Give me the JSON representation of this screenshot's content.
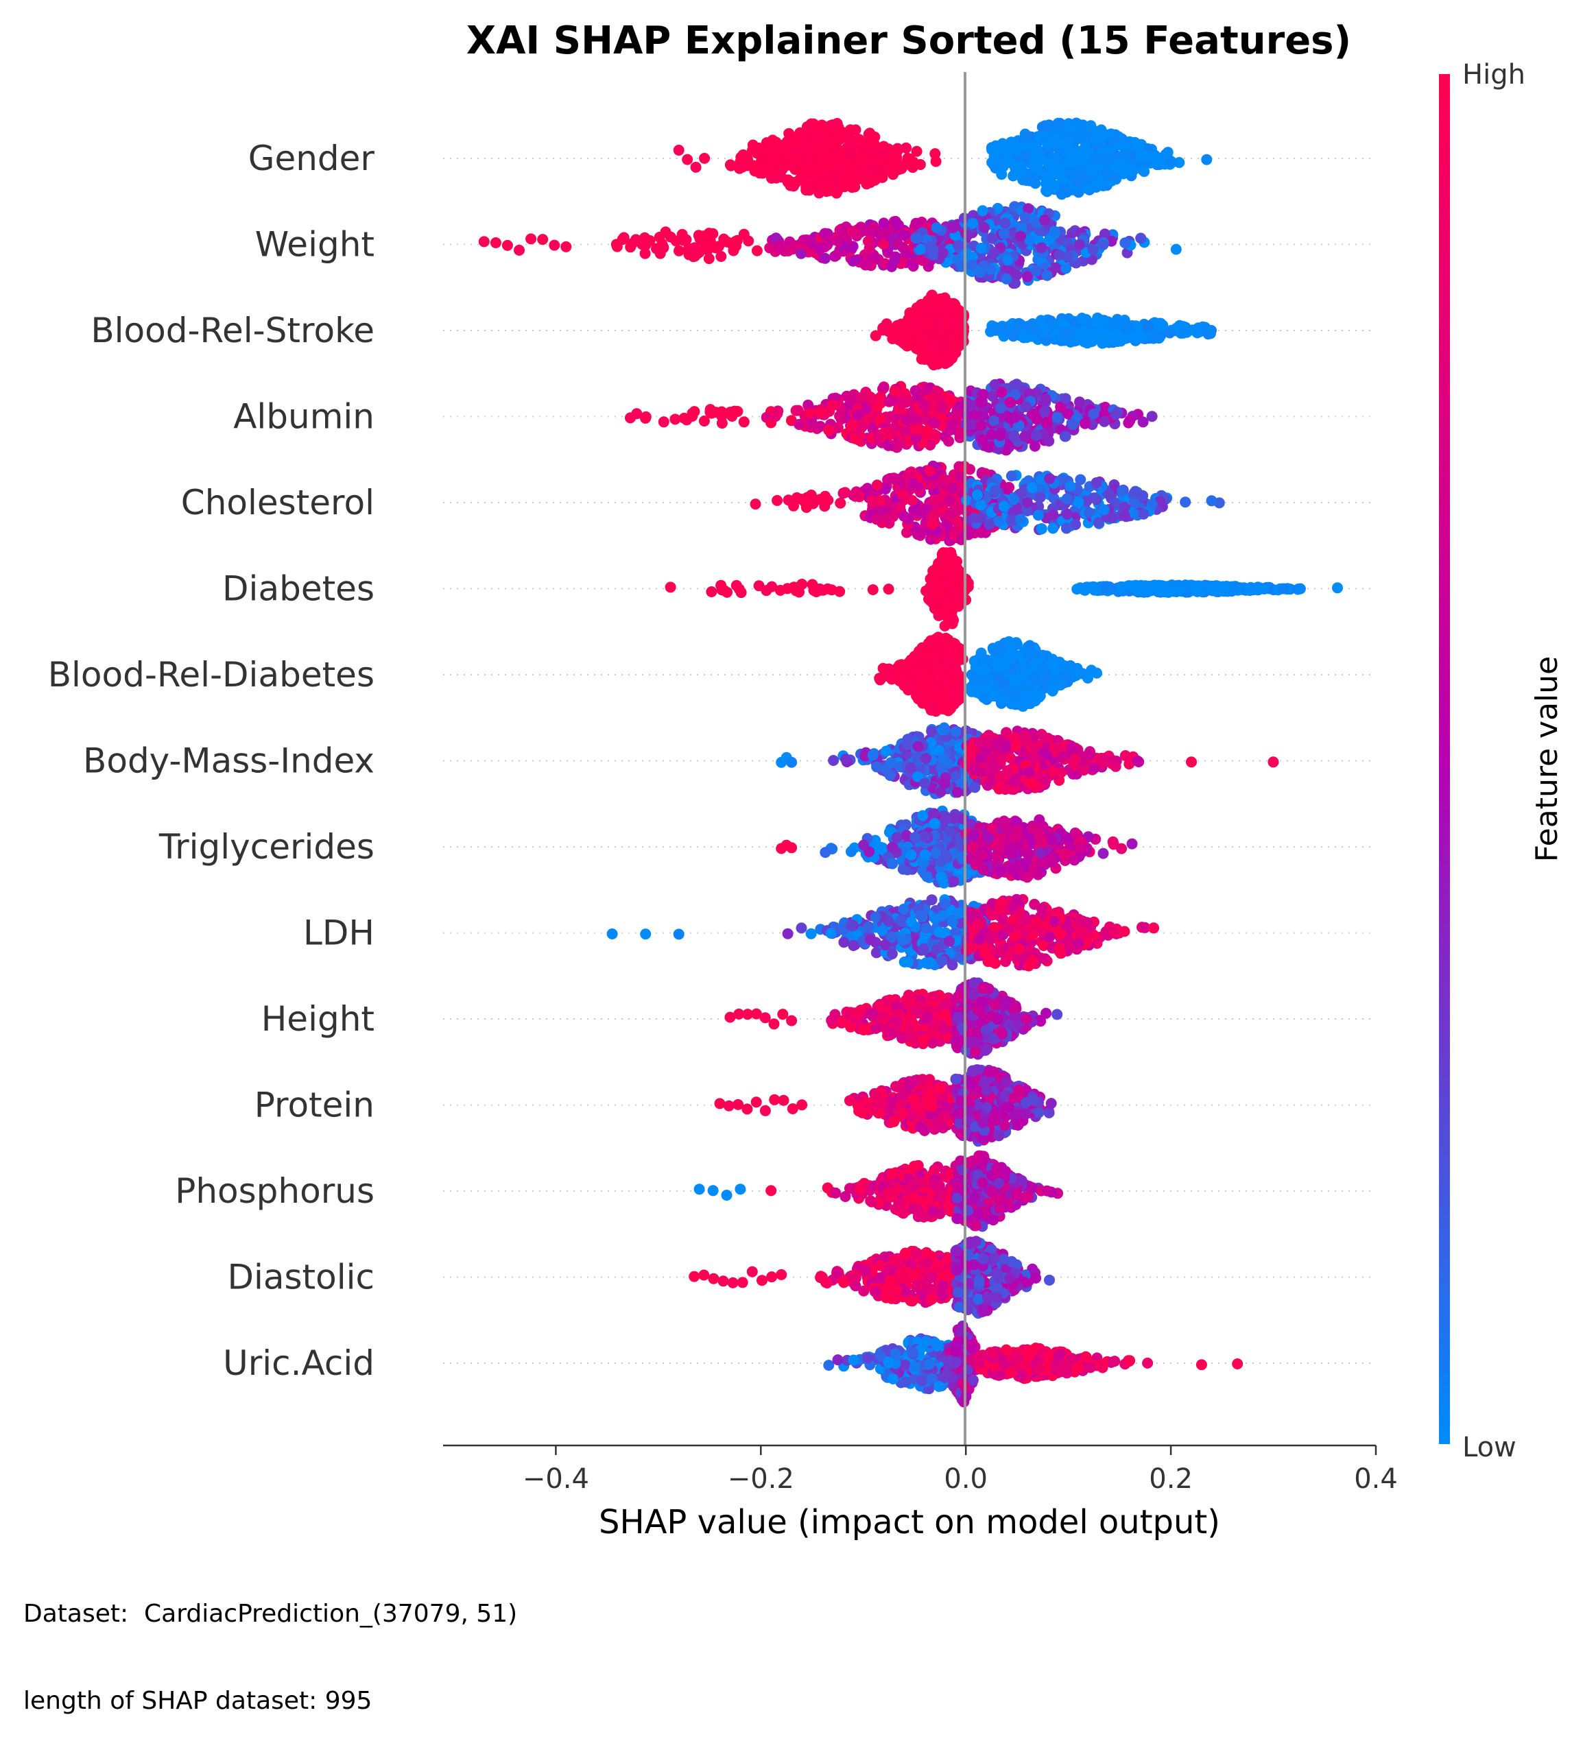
{
  "chart_data": {
    "type": "scatter",
    "subtype": "beeswarm",
    "title": "XAI SHAP Explainer Sorted  (15 Features)",
    "xlabel": "SHAP value (impact on model output)",
    "ylabel": "",
    "xlim": [
      -0.51,
      0.4
    ],
    "x_ticks": [
      -0.4,
      -0.2,
      0.0,
      0.2,
      0.4
    ],
    "x_tick_labels": [
      "−0.4",
      "−0.2",
      "0.0",
      "0.2",
      "0.4"
    ],
    "colorbar": {
      "label": "Feature value",
      "high_label": "High",
      "low_label": "Low",
      "high_color": "#ff0052",
      "mid_color": "#b800b0",
      "low_color": "#008bfb"
    },
    "zero_line": true,
    "grid": false,
    "n_points_per_feature": 995,
    "features": [
      {
        "name": "Gender",
        "groups": [
          {
            "min": -0.28,
            "max": -0.255,
            "center": -0.27,
            "spread": 0.01,
            "color": 1.0,
            "count": 4,
            "width": 0.5
          },
          {
            "min": -0.23,
            "max": -0.01,
            "center": -0.135,
            "spread": 0.045,
            "color": 1.0,
            "count": 420,
            "width": 1.4
          },
          {
            "min": 0.025,
            "max": 0.255,
            "center": 0.1,
            "spread": 0.045,
            "color": 0.0,
            "count": 420,
            "width": 1.4
          }
        ]
      },
      {
        "name": "Weight",
        "groups": [
          {
            "min": -0.47,
            "max": -0.39,
            "center": -0.43,
            "spread": 0.03,
            "color": 1.0,
            "count": 8,
            "width": 0.3
          },
          {
            "min": -0.345,
            "max": -0.2,
            "center": -0.25,
            "spread": 0.06,
            "color": 1.0,
            "count": 60,
            "width": 0.6
          },
          {
            "min": -0.2,
            "max": 0.0,
            "center": -0.06,
            "spread": 0.07,
            "color": 0.65,
            "count": 220,
            "width": 0.9
          },
          {
            "min": -0.05,
            "max": 0.21,
            "center": 0.045,
            "spread": 0.05,
            "color": 0.2,
            "count": 360,
            "width": 1.5
          }
        ]
      },
      {
        "name": "Blood-Rel-Stroke",
        "groups": [
          {
            "min": -0.09,
            "max": -0.002,
            "center": -0.028,
            "spread": 0.02,
            "color": 1.0,
            "count": 330,
            "width": 1.4
          },
          {
            "min": 0.022,
            "max": 0.26,
            "center": 0.12,
            "spread": 0.06,
            "color": 0.0,
            "count": 300,
            "width": 0.5
          }
        ]
      },
      {
        "name": "Albumin",
        "groups": [
          {
            "min": -0.33,
            "max": -0.2,
            "center": -0.25,
            "spread": 0.05,
            "color": 1.0,
            "count": 25,
            "width": 0.3
          },
          {
            "min": -0.2,
            "max": 0.02,
            "center": -0.06,
            "spread": 0.06,
            "color": 0.82,
            "count": 330,
            "width": 1.2
          },
          {
            "min": 0.0,
            "max": 0.27,
            "center": 0.04,
            "spread": 0.05,
            "color": 0.35,
            "count": 280,
            "width": 1.3
          }
        ]
      },
      {
        "name": "Cholesterol",
        "groups": [
          {
            "min": -0.23,
            "max": -0.12,
            "center": -0.15,
            "spread": 0.03,
            "color": 1.0,
            "count": 20,
            "width": 0.3
          },
          {
            "min": -0.12,
            "max": 0.05,
            "center": -0.02,
            "spread": 0.05,
            "color": 0.72,
            "count": 330,
            "width": 1.5
          },
          {
            "min": 0.0,
            "max": 0.315,
            "center": 0.07,
            "spread": 0.07,
            "color": 0.15,
            "count": 260,
            "width": 1.1
          }
        ]
      },
      {
        "name": "Diabetes",
        "groups": [
          {
            "min": -0.33,
            "max": -0.07,
            "center": -0.18,
            "spread": 0.06,
            "color": 1.0,
            "count": 30,
            "width": 0.2
          },
          {
            "min": -0.04,
            "max": 0.005,
            "center": -0.018,
            "spread": 0.01,
            "color": 1.0,
            "count": 170,
            "width": 1.5
          },
          {
            "min": 0.105,
            "max": 0.33,
            "center": 0.2,
            "spread": 0.06,
            "color": 0.0,
            "count": 300,
            "width": 0.15
          },
          {
            "min": 0.36,
            "max": 0.365,
            "center": 0.362,
            "spread": 0.002,
            "color": 0.0,
            "count": 1,
            "width": 0.1
          }
        ]
      },
      {
        "name": "Blood-Rel-Diabetes",
        "groups": [
          {
            "min": -0.1,
            "max": -0.003,
            "center": -0.025,
            "spread": 0.02,
            "color": 1.0,
            "count": 330,
            "width": 1.5
          },
          {
            "min": 0.005,
            "max": 0.14,
            "center": 0.045,
            "spread": 0.03,
            "color": 0.0,
            "count": 330,
            "width": 1.3
          }
        ]
      },
      {
        "name": "Body-Mass-Index",
        "groups": [
          {
            "min": -0.18,
            "max": -0.17,
            "center": -0.175,
            "spread": 0.005,
            "color": 0.0,
            "count": 3,
            "width": 0.2
          },
          {
            "min": -0.13,
            "max": 0.02,
            "center": -0.02,
            "spread": 0.04,
            "color": 0.2,
            "count": 300,
            "width": 1.3
          },
          {
            "min": 0.0,
            "max": 0.19,
            "center": 0.05,
            "spread": 0.04,
            "color": 0.78,
            "count": 300,
            "width": 1.2
          },
          {
            "min": 0.22,
            "max": 0.3,
            "center": 0.26,
            "spread": 0.04,
            "color": 1.0,
            "count": 2,
            "width": 0.1
          }
        ]
      },
      {
        "name": "Triglycerides",
        "groups": [
          {
            "min": -0.18,
            "max": -0.17,
            "center": -0.175,
            "spread": 0.005,
            "color": 1.0,
            "count": 3,
            "width": 0.2
          },
          {
            "min": -0.15,
            "max": 0.02,
            "center": -0.02,
            "spread": 0.04,
            "color": 0.18,
            "count": 330,
            "width": 1.4
          },
          {
            "min": 0.0,
            "max": 0.2,
            "center": 0.05,
            "spread": 0.04,
            "color": 0.62,
            "count": 280,
            "width": 1.2
          }
        ]
      },
      {
        "name": "LDH",
        "groups": [
          {
            "min": -0.345,
            "max": -0.28,
            "center": -0.31,
            "spread": 0.03,
            "color": 0.0,
            "count": 3,
            "width": 0.1
          },
          {
            "min": -0.21,
            "max": 0.02,
            "center": -0.03,
            "spread": 0.05,
            "color": 0.15,
            "count": 300,
            "width": 1.3
          },
          {
            "min": 0.0,
            "max": 0.19,
            "center": 0.05,
            "spread": 0.045,
            "color": 0.82,
            "count": 300,
            "width": 1.3
          }
        ]
      },
      {
        "name": "Height",
        "groups": [
          {
            "min": -0.23,
            "max": -0.17,
            "center": -0.2,
            "spread": 0.02,
            "color": 1.0,
            "count": 8,
            "width": 0.3
          },
          {
            "min": -0.16,
            "max": 0.01,
            "center": -0.04,
            "spread": 0.04,
            "color": 0.88,
            "count": 270,
            "width": 1.0
          },
          {
            "min": -0.01,
            "max": 0.105,
            "center": 0.01,
            "spread": 0.025,
            "color": 0.45,
            "count": 290,
            "width": 1.4
          }
        ]
      },
      {
        "name": "Protein",
        "groups": [
          {
            "min": -0.24,
            "max": -0.16,
            "center": -0.19,
            "spread": 0.02,
            "color": 1.0,
            "count": 10,
            "width": 0.3
          },
          {
            "min": -0.12,
            "max": 0.01,
            "center": -0.04,
            "spread": 0.035,
            "color": 0.85,
            "count": 270,
            "width": 1.0
          },
          {
            "min": -0.01,
            "max": 0.15,
            "center": 0.015,
            "spread": 0.03,
            "color": 0.45,
            "count": 290,
            "width": 1.4
          }
        ]
      },
      {
        "name": "Phosphorus",
        "groups": [
          {
            "min": -0.26,
            "max": -0.22,
            "center": -0.24,
            "spread": 0.015,
            "color": 0.0,
            "count": 4,
            "width": 0.2
          },
          {
            "min": -0.19,
            "max": -0.19,
            "center": -0.19,
            "spread": 0.002,
            "color": 1.0,
            "count": 1,
            "width": 0.1
          },
          {
            "min": -0.145,
            "max": 0.01,
            "center": -0.04,
            "spread": 0.035,
            "color": 0.85,
            "count": 260,
            "width": 1.0
          },
          {
            "min": -0.01,
            "max": 0.1,
            "center": 0.01,
            "spread": 0.025,
            "color": 0.5,
            "count": 300,
            "width": 1.4
          }
        ]
      },
      {
        "name": "Diastolic",
        "groups": [
          {
            "min": -0.265,
            "max": -0.18,
            "center": -0.21,
            "spread": 0.025,
            "color": 1.0,
            "count": 10,
            "width": 0.3
          },
          {
            "min": -0.17,
            "max": 0.01,
            "center": -0.05,
            "spread": 0.04,
            "color": 0.9,
            "count": 280,
            "width": 1.0
          },
          {
            "min": -0.01,
            "max": 0.12,
            "center": 0.01,
            "spread": 0.025,
            "color": 0.35,
            "count": 280,
            "width": 1.4
          }
        ]
      },
      {
        "name": "Uric.Acid",
        "groups": [
          {
            "min": -0.14,
            "max": -0.01,
            "center": -0.04,
            "spread": 0.03,
            "color": 0.15,
            "count": 230,
            "width": 1.0
          },
          {
            "min": -0.02,
            "max": 0.01,
            "center": -0.003,
            "spread": 0.008,
            "color": 0.5,
            "count": 160,
            "width": 1.5
          },
          {
            "min": 0.01,
            "max": 0.2,
            "center": 0.06,
            "spread": 0.04,
            "color": 0.92,
            "count": 230,
            "width": 0.6
          },
          {
            "min": 0.23,
            "max": 0.265,
            "center": 0.25,
            "spread": 0.02,
            "color": 1.0,
            "count": 2,
            "width": 0.1
          }
        ]
      }
    ]
  },
  "footer": {
    "dataset_line": "Dataset:  CardiacPrediction_(37079, 51)",
    "length_line": "length of SHAP dataset: 995"
  }
}
